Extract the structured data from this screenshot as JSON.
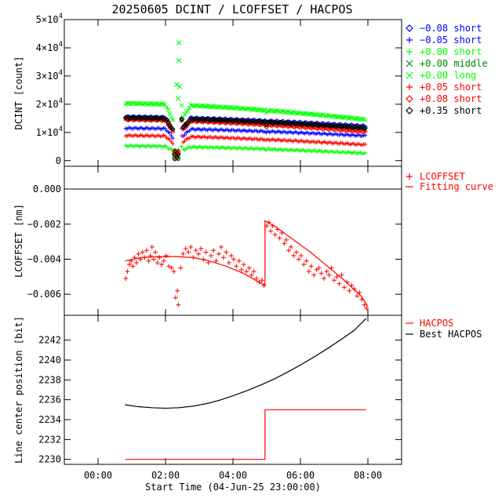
{
  "title": "20250605 DCINT / LCOFFSET / HACPOS",
  "chart_data": [
    {
      "type": "scatter",
      "name": "dcint",
      "ylabel": "DCINT [count]",
      "ylim": [
        -2000,
        50000
      ],
      "yticks": [
        {
          "v": 0,
          "mant": "0",
          "exp": ""
        },
        {
          "v": 10000,
          "mant": "1×10",
          "exp": "4"
        },
        {
          "v": 20000,
          "mant": "2×10",
          "exp": "4"
        },
        {
          "v": 30000,
          "mant": "3×10",
          "exp": "4"
        },
        {
          "v": 40000,
          "mant": "4×10",
          "exp": "4"
        },
        {
          "v": 50000,
          "mant": "5×10",
          "exp": "4"
        }
      ],
      "series": [
        {
          "name": "−0.08 short",
          "marker": "diamond",
          "color": "#0000ff",
          "base": 15400,
          "end": 12100
        },
        {
          "name": "−0.05 short",
          "marker": "plus",
          "color": "#0000ff",
          "base": 11500,
          "end": 8800
        },
        {
          "name": "+0.00 short",
          "marker": "plus",
          "color": "#00ff00",
          "base": 5200,
          "end": 2600
        },
        {
          "name": "+0.00 middle",
          "marker": "x",
          "color": "#008800",
          "base": 14800,
          "end": 11200
        },
        {
          "name": "+0.00 long",
          "marker": "x",
          "color": "#00ff00",
          "base": 20300,
          "end": 14500
        },
        {
          "name": "+0.05 short",
          "marker": "plus",
          "color": "#ff0000",
          "base": 8900,
          "end": 5600
        },
        {
          "name": "+0.08 short",
          "marker": "diamond",
          "color": "#ff0000",
          "base": 14600,
          "end": 10300
        },
        {
          "name": "+0.35 short",
          "marker": "diamond",
          "color": "#000000",
          "base": 15200,
          "end": 11600
        }
      ],
      "spikes": [
        {
          "x": 2.4,
          "y": 41800
        },
        {
          "x": 2.4,
          "y": 35500
        },
        {
          "x": 2.33,
          "y": 27000
        },
        {
          "x": 2.42,
          "y": 26200
        },
        {
          "x": 2.38,
          "y": 22000
        }
      ]
    },
    {
      "type": "line",
      "name": "lcoffset",
      "ylabel": "LCOFFSET [nm]",
      "ylim": [
        -0.0072,
        0.0013
      ],
      "yticks": [
        {
          "v": 0,
          "label": "0.000"
        },
        {
          "v": -0.002,
          "label": "−0.002"
        },
        {
          "v": -0.004,
          "label": "−0.004"
        },
        {
          "v": -0.006,
          "label": "−0.006"
        }
      ],
      "zero_line": 0,
      "legend": [
        {
          "name": "LCOFFSET",
          "marker": "plus",
          "color": "#ff0000"
        },
        {
          "name": "Fitting curve",
          "marker": "line",
          "color": "#ff0000"
        }
      ],
      "fit": {
        "x": [
          0.8,
          1.3,
          1.8,
          2.3,
          2.8,
          3.3,
          3.8,
          4.3,
          4.95,
          4.95,
          5.3,
          5.8,
          6.3,
          6.8,
          7.3,
          7.8,
          8.0
        ],
        "y": [
          -0.0041,
          -0.0039,
          -0.00385,
          -0.00385,
          -0.0039,
          -0.0041,
          -0.0044,
          -0.0048,
          -0.0055,
          -0.0018,
          -0.0022,
          -0.0029,
          -0.0036,
          -0.0044,
          -0.0052,
          -0.0061,
          -0.0067
        ]
      },
      "measured": {
        "x": [
          0.82,
          0.87,
          0.93,
          0.98,
          1.03,
          1.08,
          1.14,
          1.2,
          1.26,
          1.32,
          1.38,
          1.44,
          1.5,
          1.55,
          1.6,
          1.65,
          1.7,
          1.76,
          1.82,
          1.88,
          1.95,
          2.02,
          2.1,
          2.18,
          2.25,
          2.3,
          2.35,
          2.38,
          2.45,
          2.52,
          2.6,
          2.68,
          2.75,
          2.82,
          2.9,
          2.98,
          3.05,
          3.12,
          3.2,
          3.27,
          3.35,
          3.42,
          3.5,
          3.58,
          3.65,
          3.72,
          3.8,
          3.88,
          3.95,
          4.02,
          4.1,
          4.18,
          4.25,
          4.32,
          4.4,
          4.48,
          4.55,
          4.62,
          4.7,
          4.78,
          4.86,
          4.92,
          5.0,
          5.06,
          5.12,
          5.18,
          5.25,
          5.32,
          5.38,
          5.45,
          5.52,
          5.58,
          5.65,
          5.72,
          5.8,
          5.88,
          5.95,
          6.02,
          6.1,
          6.18,
          6.25,
          6.32,
          6.4,
          6.48,
          6.55,
          6.62,
          6.7,
          6.78,
          6.85,
          6.92,
          7.0,
          7.08,
          7.15,
          7.22,
          7.3,
          7.38,
          7.45,
          7.52,
          7.6,
          7.68,
          7.75,
          7.82,
          7.9,
          7.96
        ],
        "y": [
          -0.0051,
          -0.0047,
          -0.0043,
          -0.0041,
          -0.0044,
          -0.0039,
          -0.0042,
          -0.0037,
          -0.004,
          -0.0036,
          -0.0039,
          -0.0035,
          -0.0041,
          -0.0038,
          -0.0033,
          -0.004,
          -0.0036,
          -0.0042,
          -0.0039,
          -0.0043,
          -0.0041,
          -0.0038,
          -0.0044,
          -0.0045,
          -0.0047,
          -0.0062,
          -0.0058,
          -0.0066,
          -0.0045,
          -0.0037,
          -0.0034,
          -0.0036,
          -0.0033,
          -0.0039,
          -0.0035,
          -0.0037,
          -0.0034,
          -0.004,
          -0.0036,
          -0.0042,
          -0.0038,
          -0.0035,
          -0.0041,
          -0.0037,
          -0.0033,
          -0.0039,
          -0.0036,
          -0.0042,
          -0.0038,
          -0.004,
          -0.0044,
          -0.0041,
          -0.0046,
          -0.0043,
          -0.0047,
          -0.0045,
          -0.0049,
          -0.0047,
          -0.0051,
          -0.0053,
          -0.0052,
          -0.0055,
          -0.0021,
          -0.0019,
          -0.0024,
          -0.0021,
          -0.0026,
          -0.0023,
          -0.0028,
          -0.0025,
          -0.0031,
          -0.0029,
          -0.0035,
          -0.0033,
          -0.0038,
          -0.0036,
          -0.004,
          -0.0038,
          -0.0043,
          -0.0041,
          -0.0047,
          -0.0044,
          -0.0049,
          -0.0046,
          -0.0045,
          -0.0048,
          -0.0051,
          -0.0047,
          -0.0049,
          -0.0045,
          -0.0052,
          -0.005,
          -0.0054,
          -0.0049,
          -0.0056,
          -0.0053,
          -0.0058,
          -0.0055,
          -0.0057,
          -0.0061,
          -0.0059,
          -0.0063,
          -0.0066,
          -0.0068
        ]
      }
    },
    {
      "type": "line",
      "name": "hacpos",
      "ylabel": "Line center position [bit]",
      "xlabel": "Start Time (04-Jun-25 23:00:00)",
      "ylim": [
        2229.5,
        2244.5
      ],
      "yticks": [
        {
          "v": 2230,
          "label": "2230"
        },
        {
          "v": 2232,
          "label": "2232"
        },
        {
          "v": 2234,
          "label": "2234"
        },
        {
          "v": 2236,
          "label": "2236"
        },
        {
          "v": 2238,
          "label": "2238"
        },
        {
          "v": 2240,
          "label": "2240"
        },
        {
          "v": 2242,
          "label": "2242"
        }
      ],
      "legend": [
        {
          "name": "HACPOS",
          "marker": "line",
          "color": "#ff0000"
        },
        {
          "name": "Best HACPOS",
          "marker": "line",
          "color": "#000000"
        }
      ],
      "series": [
        {
          "name": "HACPOS",
          "color": "#ff0000",
          "x": [
            0.8,
            4.95,
            4.95,
            7.95
          ],
          "y": [
            2230,
            2230,
            2235,
            2235
          ]
        },
        {
          "name": "Best HACPOS",
          "color": "#000000",
          "x": [
            0.8,
            1.2,
            1.6,
            2.0,
            2.4,
            2.8,
            3.2,
            3.6,
            4.0,
            4.4,
            4.8,
            5.2,
            5.6,
            6.0,
            6.4,
            6.8,
            7.2,
            7.6,
            7.95
          ],
          "y": [
            2235.5,
            2235.3,
            2235.2,
            2235.15,
            2235.2,
            2235.35,
            2235.6,
            2235.95,
            2236.4,
            2236.9,
            2237.45,
            2238.05,
            2238.75,
            2239.5,
            2240.3,
            2241.15,
            2242.05,
            2243.0,
            2244.2
          ]
        }
      ]
    }
  ],
  "xaxis": {
    "xlim": [
      -1.0,
      9.0
    ],
    "ticks": [
      {
        "v": 0,
        "label": "00:00"
      },
      {
        "v": 2,
        "label": "02:00"
      },
      {
        "v": 4,
        "label": "04:00"
      },
      {
        "v": 6,
        "label": "06:00"
      },
      {
        "v": 8,
        "label": "08:00"
      }
    ]
  }
}
